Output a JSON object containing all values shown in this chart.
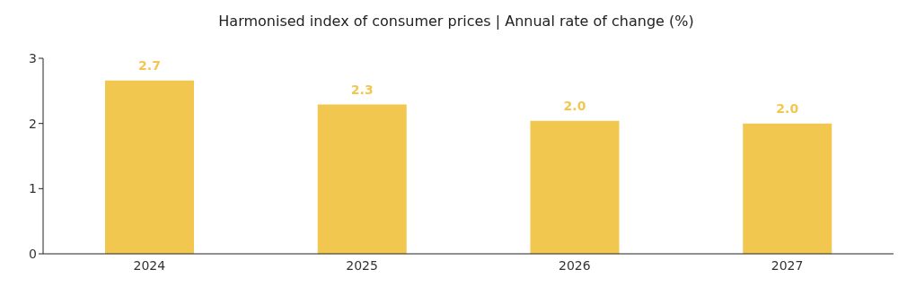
{
  "chart_data": {
    "type": "bar",
    "title": "Harmonised index of consumer prices | Annual rate of change (%)",
    "categories": [
      "2024",
      "2025",
      "2026",
      "2027"
    ],
    "values": [
      2.66,
      2.29,
      2.04,
      2.0
    ],
    "value_labels": [
      "2.7",
      "2.3",
      "2.0",
      "2.0"
    ],
    "color": "#f2c74f",
    "ylim": [
      0,
      3
    ],
    "yticks": [
      0,
      1,
      2,
      3
    ],
    "grid": false,
    "legend": false
  }
}
